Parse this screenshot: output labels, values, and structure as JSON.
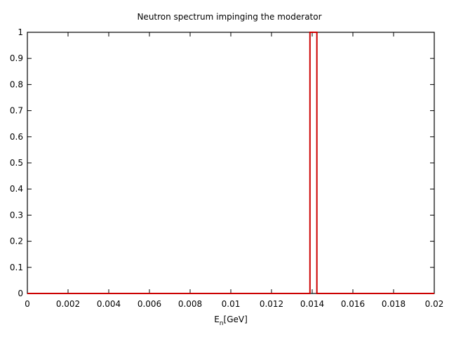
{
  "chart_data": {
    "type": "line",
    "title": "Neutron spectrum impinging the moderator",
    "xlabel_main": "E",
    "xlabel_sub": "n",
    "xlabel_rest": "[GeV]",
    "ylabel": "",
    "xlim": [
      0,
      0.02
    ],
    "ylim": [
      0,
      1
    ],
    "x_tick_labels": [
      "0",
      "0.002",
      "0.004",
      "0.006",
      "0.008",
      "0.01",
      "0.012",
      "0.014",
      "0.016",
      "0.018",
      "0.02"
    ],
    "y_tick_labels": [
      "0",
      "0.1",
      "0.2",
      "0.3",
      "0.4",
      "0.5",
      "0.6",
      "0.7",
      "0.8",
      "0.9",
      "1"
    ],
    "grid": false,
    "series": [
      {
        "color": "#cc0000",
        "x": [
          0,
          0.01389,
          0.01389,
          0.01423,
          0.01423,
          0.02
        ],
        "y": [
          0,
          0,
          1,
          1,
          0,
          0
        ]
      }
    ]
  }
}
